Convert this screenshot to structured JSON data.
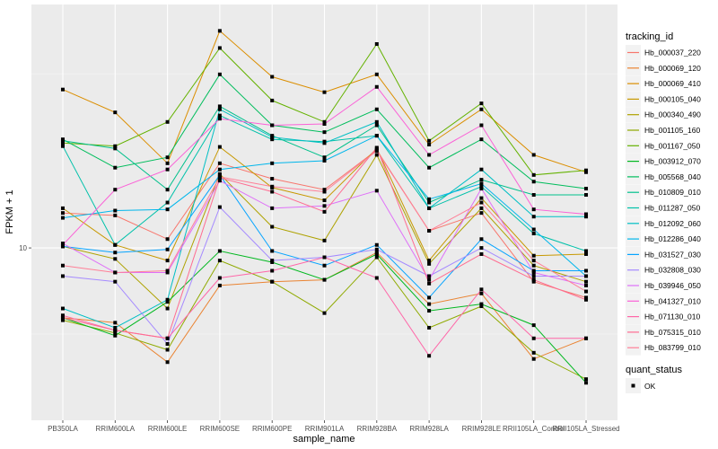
{
  "chart_data": {
    "type": "line",
    "title": "",
    "xlabel": "sample_name",
    "ylabel": "FPKM + 1",
    "y_scale": "log10",
    "y_ticks": [
      10
    ],
    "y_tick_labels": [
      "10"
    ],
    "ylim": [
      3.2,
      50
    ],
    "grid": true,
    "legend_position": "right",
    "categories": [
      "PB350LA",
      "RRIM600LA",
      "RRIM600LE",
      "RRIM600SE",
      "RRIM600PE",
      "RRIM901LA",
      "RRIM928BA",
      "RRIM928LA",
      "RRIM928LE",
      "RRII105LA_Control",
      "RRII105LA_Stressed"
    ],
    "legend": {
      "color_title": "tracking_id",
      "shape_title": "quant_status",
      "shape_entries": [
        {
          "label": "OK",
          "shape": "square"
        }
      ]
    },
    "series": [
      {
        "name": "Hb_000037_220",
        "color": "#F8766D",
        "values": [
          12.6,
          12.4,
          10.6,
          17.5,
          15.8,
          14.7,
          19.1,
          11.2,
          12.6,
          8.0,
          7.2
        ]
      },
      {
        "name": "Hb_000069_120",
        "color": "#EA8331",
        "values": [
          6.3,
          6.1,
          4.7,
          7.8,
          8.0,
          8.1,
          9.7,
          6.9,
          7.4,
          4.8,
          5.5
        ]
      },
      {
        "name": "Hb_000069_410",
        "color": "#DB8E00",
        "values": [
          28.5,
          24.5,
          17.5,
          42.0,
          31.0,
          28.0,
          31.5,
          19.8,
          25.0,
          18.5,
          16.5
        ]
      },
      {
        "name": "Hb_000105_040",
        "color": "#C79800",
        "values": [
          13.0,
          10.2,
          9.2,
          19.5,
          14.9,
          13.7,
          19.3,
          9.2,
          13.9,
          9.5,
          9.6
        ]
      },
      {
        "name": "Hb_000340_490",
        "color": "#AEA200",
        "values": [
          10.1,
          9.3,
          6.7,
          16.3,
          11.5,
          10.5,
          18.5,
          9.0,
          13.0,
          8.9,
          8.0
        ]
      },
      {
        "name": "Hb_001105_160",
        "color": "#8FAA00",
        "values": [
          6.2,
          5.7,
          5.1,
          9.2,
          8.0,
          6.5,
          9.4,
          5.9,
          6.8,
          5.0,
          4.2
        ]
      },
      {
        "name": "Hb_001167_050",
        "color": "#64B200",
        "values": [
          20.0,
          19.6,
          23.0,
          37.5,
          26.5,
          23.0,
          38.5,
          20.3,
          26.0,
          16.2,
          16.7
        ]
      },
      {
        "name": "Hb_003912_070",
        "color": "#00B81F",
        "values": [
          6.3,
          5.6,
          7.0,
          9.8,
          9.1,
          8.1,
          9.6,
          6.6,
          6.9,
          6.0,
          4.1
        ]
      },
      {
        "name": "Hb_005568_040",
        "color": "#00BD5C",
        "values": [
          20.5,
          17.0,
          18.2,
          31.5,
          22.5,
          21.5,
          25.0,
          17.0,
          20.5,
          15.5,
          14.8
        ]
      },
      {
        "name": "Hb_010809_010",
        "color": "#00C08B",
        "values": [
          20.3,
          19.3,
          14.7,
          25.5,
          21.0,
          18.2,
          22.5,
          13.5,
          15.7,
          14.2,
          14.2
        ]
      },
      {
        "name": "Hb_011287_050",
        "color": "#00C1AA",
        "values": [
          19.6,
          10.2,
          13.5,
          24.0,
          20.5,
          20.2,
          21.0,
          13.0,
          15.0,
          11.0,
          9.8
        ]
      },
      {
        "name": "Hb_012092_060",
        "color": "#00BFC4",
        "values": [
          6.7,
          5.9,
          7.1,
          25.0,
          20.8,
          20.0,
          23.0,
          13.0,
          16.8,
          12.3,
          12.3
        ]
      },
      {
        "name": "Hb_012286_040",
        "color": "#00B6EB",
        "values": [
          12.2,
          12.8,
          12.9,
          16.8,
          17.5,
          17.8,
          21.0,
          13.8,
          15.3,
          11.3,
          8.3
        ]
      },
      {
        "name": "Hb_031527_030",
        "color": "#06A4FF",
        "values": [
          10.1,
          9.7,
          9.9,
          16.2,
          9.8,
          8.9,
          10.2,
          7.2,
          10.6,
          8.6,
          8.6
        ]
      },
      {
        "name": "Hb_032808_030",
        "color": "#A58AFF",
        "values": [
          8.3,
          8.0,
          5.3,
          13.1,
          9.2,
          9.4,
          9.9,
          8.3,
          10.0,
          8.3,
          8.3
        ]
      },
      {
        "name": "Hb_039946_050",
        "color": "#DF70F8",
        "values": [
          10.3,
          8.5,
          8.5,
          15.6,
          13.0,
          13.2,
          14.6,
          8.1,
          14.8,
          8.5,
          7.8
        ]
      },
      {
        "name": "Hb_041327_010",
        "color": "#FB61D7",
        "values": [
          10.2,
          14.7,
          16.8,
          23.5,
          22.5,
          22.7,
          29.0,
          18.5,
          22.5,
          12.9,
          12.5
        ]
      },
      {
        "name": "Hb_071130_010",
        "color": "#FF66A8",
        "values": [
          6.4,
          5.8,
          5.5,
          8.2,
          8.6,
          9.4,
          8.2,
          4.9,
          7.6,
          5.5,
          5.5
        ]
      },
      {
        "name": "Hb_075315_010",
        "color": "#FF6C91",
        "values": [
          6.3,
          5.8,
          5.5,
          15.9,
          14.5,
          12.7,
          19.4,
          7.9,
          9.6,
          8.1,
          7.1
        ]
      },
      {
        "name": "Hb_083799_010",
        "color": "#FF7F97",
        "values": [
          8.9,
          8.5,
          8.6,
          16.0,
          15.0,
          14.5,
          19.0,
          11.2,
          13.5,
          9.2,
          7.5
        ]
      }
    ]
  }
}
